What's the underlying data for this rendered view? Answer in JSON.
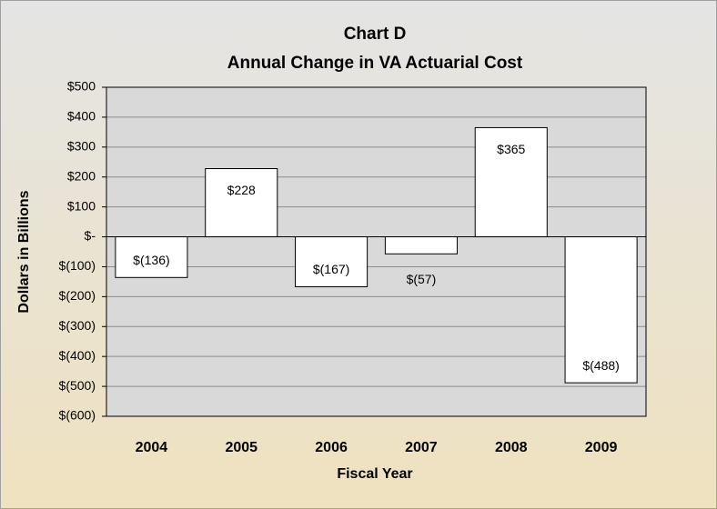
{
  "chart_data": {
    "type": "bar",
    "title": "Chart D",
    "subtitle": "Annual Change in VA Actuarial Cost",
    "x_label": "Fiscal Year",
    "y_label": "Dollars in Billions",
    "categories": [
      "2004",
      "2005",
      "2006",
      "2007",
      "2008",
      "2009"
    ],
    "values": [
      -136,
      228,
      -167,
      -57,
      365,
      -488
    ],
    "value_labels": [
      "$(136)",
      "$228",
      "$(167)",
      "$(57)",
      "$365",
      "$(488)"
    ],
    "color": "#ffffff",
    "ylim": [
      -600,
      500
    ],
    "yticks": [
      {
        "value": 500,
        "label": "$500"
      },
      {
        "value": 400,
        "label": "$400"
      },
      {
        "value": 300,
        "label": "$300"
      },
      {
        "value": 200,
        "label": "$200"
      },
      {
        "value": 100,
        "label": "$100"
      },
      {
        "value": 0,
        "label": "$-"
      },
      {
        "value": -100,
        "label": "$(100)"
      },
      {
        "value": -200,
        "label": "$(200)"
      },
      {
        "value": -300,
        "label": "$(300)"
      },
      {
        "value": -400,
        "label": "$(400)"
      },
      {
        "value": -500,
        "label": "$(500)"
      },
      {
        "value": -600,
        "label": "$(600)"
      }
    ],
    "grid": true
  }
}
